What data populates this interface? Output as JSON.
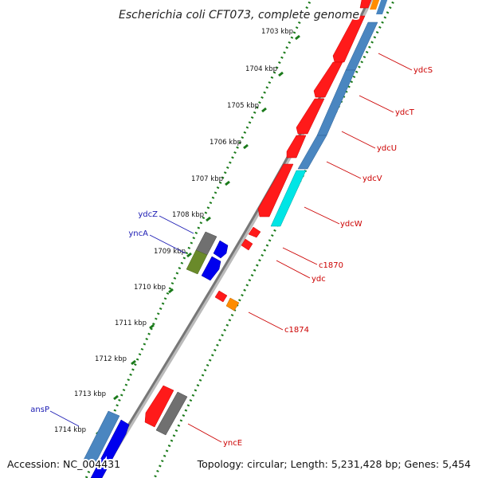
{
  "title": "Escherichia coli CFT073, complete genome",
  "footer": {
    "accession": "Accession: NC_004431",
    "topology": "Topology: circular; Length: 5,231,428 bp; Genes: 5,454"
  },
  "colors": {
    "backbone": "#808080",
    "tick": "#1a7a1a",
    "forward_label": "#1a1ab3",
    "reverse_label": "#cc0000",
    "red_gene": "#ff1a1a",
    "blue_gene": "#0000ee",
    "steel_gene": "#4a86c0",
    "gray_gene": "#707070",
    "cyan_gene": "#00e5e5",
    "orange_gene": "#ff8c00",
    "olive_gene": "#6a8a2a"
  },
  "scale_labels": [
    "1703 kbp",
    "1704 kbp",
    "1705 kbp",
    "1706 kbp",
    "1707 kbp",
    "1708 kbp",
    "1709 kbp",
    "1710 kbp",
    "1711 kbp",
    "1712 kbp",
    "1713 kbp",
    "1714 kbp"
  ],
  "gene_labels": {
    "forward": [
      "ydcZ",
      "yncA",
      "ansP"
    ],
    "reverse": [
      "ydcS",
      "ydcT",
      "ydcU",
      "ydcV",
      "ydcW",
      "c1870",
      "ydc",
      "c1874",
      "yncE"
    ]
  }
}
